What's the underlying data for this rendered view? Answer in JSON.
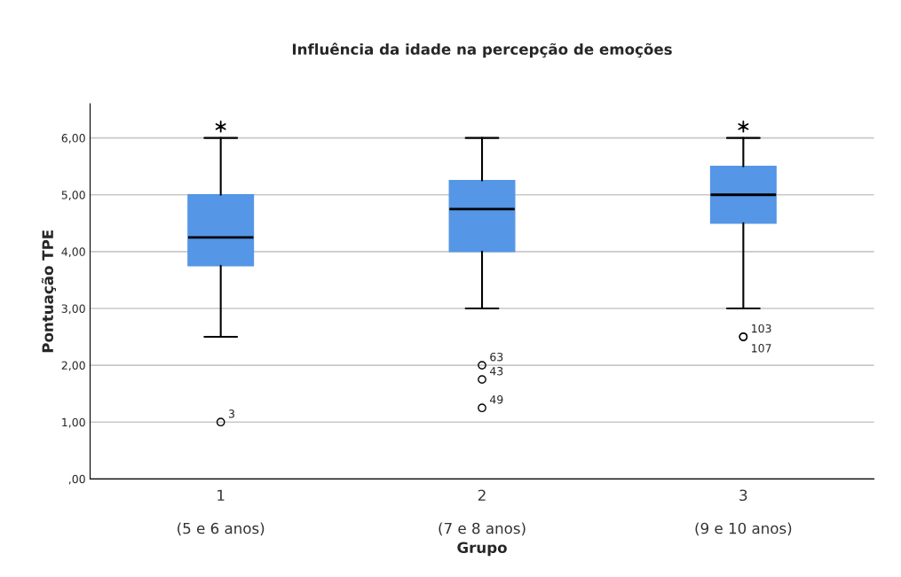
{
  "chart_data": {
    "type": "box",
    "title": "Influência da idade na percepção de emoções",
    "xlabel": "Grupo",
    "ylabel": "Pontuação TPE",
    "categories": [
      "1\n\n(5 e 6 anos)",
      "2\n\n(7 e 8 anos)",
      "3\n\n(9 e 10 anos)"
    ],
    "color": "#5596e6",
    "boxes": [
      {
        "low": 2.5,
        "q1": 3.75,
        "median": 4.25,
        "q3": 5.0,
        "high": 6.0,
        "outliers": [
          1.0
        ]
      },
      {
        "low": 3.0,
        "q1": 4.0,
        "median": 4.75,
        "q3": 5.25,
        "high": 6.0,
        "outliers": [
          2.0,
          1.75,
          1.25
        ]
      },
      {
        "low": 3.0,
        "q1": 4.5,
        "median": 5.0,
        "q3": 5.5,
        "high": 6.0,
        "outliers": [
          2.5,
          2.5
        ]
      }
    ],
    "ylim": [
      0,
      6.6
    ],
    "yticks": [
      {
        "value": 0,
        "label": ",00"
      },
      {
        "value": 1,
        "label": "1,00"
      },
      {
        "value": 2,
        "label": "2,00"
      },
      {
        "value": 3,
        "label": "3,00"
      },
      {
        "value": 4,
        "label": "4,00"
      },
      {
        "value": 5,
        "label": "5,00"
      },
      {
        "value": 6,
        "label": "6,00"
      }
    ],
    "grid": "y",
    "series": [
      {
        "type": "scatter",
        "marker": "cross",
        "color": "#000000",
        "x": [
          "1\n\n(5 e 6 anos)",
          "3\n\n(9 e 10 anos)"
        ],
        "values": [
          6.2,
          6.2
        ]
      }
    ],
    "annotations": [
      "3",
      "63",
      "43",
      "49",
      "103",
      "107"
    ]
  }
}
